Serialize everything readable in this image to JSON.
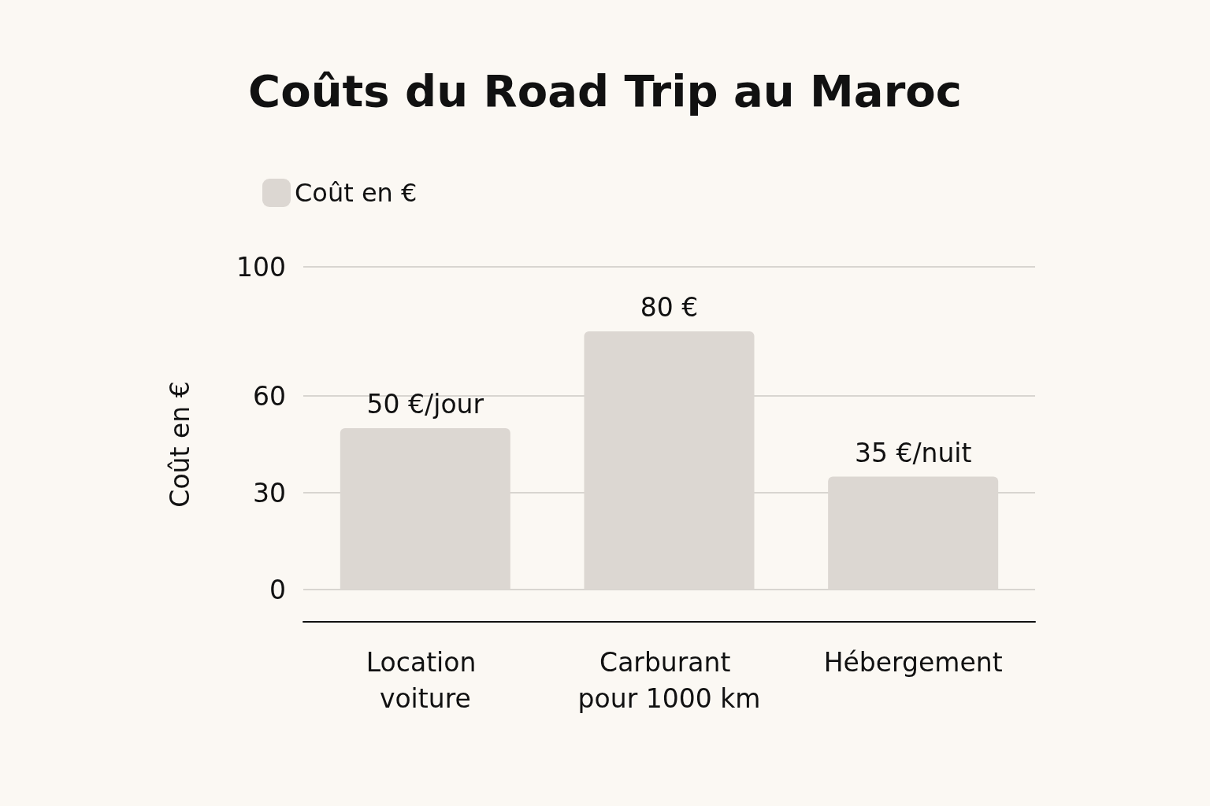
{
  "chart_data": {
    "type": "bar",
    "title": "Coûts du Road Trip au Maroc",
    "ylabel": "Coût en €",
    "categories": [
      "Location voiture",
      "Carburant pour 1000 km",
      "Hébergement"
    ],
    "series": [
      {
        "name": "Coût en €",
        "color": "#dcd7d2",
        "values": [
          50,
          80,
          35
        ],
        "value_labels": [
          "50 €/jour",
          "80 €",
          "35 €/nuit"
        ]
      }
    ],
    "ylim": [
      -10,
      100
    ],
    "yticks": [
      0,
      30,
      60,
      100
    ],
    "grid": "y",
    "legend": "top left"
  }
}
